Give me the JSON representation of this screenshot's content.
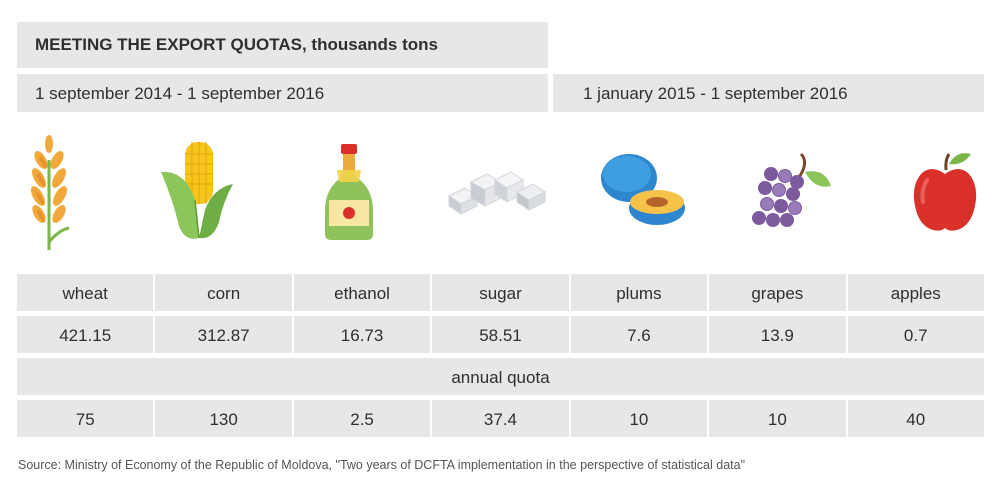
{
  "chart_data": {
    "type": "table",
    "title": "MEETING THE EXPORT QUOTAS, thousands tons",
    "periods": [
      "1 september 2014 - 1 september 2016",
      "1 january 2015 - 1 september 2016"
    ],
    "categories": [
      "wheat",
      "corn",
      "ethanol",
      "sugar",
      "plums",
      "grapes",
      "apples"
    ],
    "series": [
      {
        "values": [
          "421.15",
          "312.87",
          "16.73",
          "58.51",
          "7.6",
          "13.9",
          "0.7"
        ]
      },
      {
        "name": "annual quota",
        "values": [
          "75",
          "130",
          "2.5",
          "37.4",
          "10",
          "10",
          "40"
        ]
      }
    ],
    "source": "Source: Ministry of Economy of the Republic of Moldova, \"Two years of DCFTA implementation in the perspective of statistical data\""
  },
  "icons": [
    "wheat-icon",
    "corn-icon",
    "ethanol-bottle-icon",
    "sugar-cubes-icon",
    "plum-icon",
    "grapes-icon",
    "apple-icon"
  ],
  "colors": {
    "panel": "#e6e7e8",
    "wheat": "#f2a93b",
    "corn": "#f6c61c",
    "leaf": "#8cc65a",
    "bottle": "#8fc25b",
    "cap": "#e04b3f",
    "plum": "#3e9ee0",
    "grape": "#7d5a9e",
    "apple": "#d9302a"
  }
}
